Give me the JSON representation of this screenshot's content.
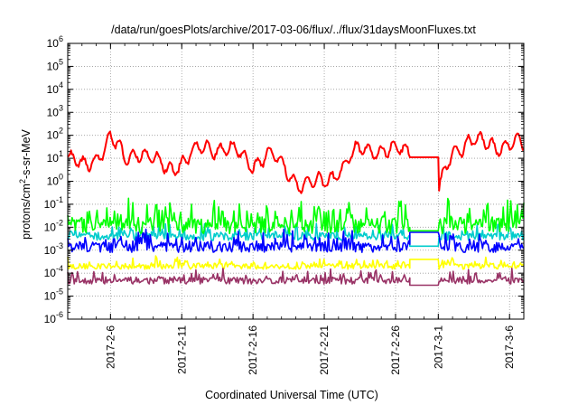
{
  "chart_data": {
    "type": "line",
    "title": "/data/run/goesPlots/archive/2017-03-06/flux/../flux/31daysMoonFluxes.txt",
    "xlabel": "Coordinated Universal Time (UTC)",
    "ylabel_parts": [
      "protons/cm",
      "2",
      "-s-sr-MeV"
    ],
    "x_axis": {
      "type": "date",
      "range": [
        "2017-02-03",
        "2017-03-07"
      ],
      "major_ticks": [
        {
          "date": "2017-02-06",
          "label": "2017-2-6"
        },
        {
          "date": "2017-02-11",
          "label": "2017-2-11"
        },
        {
          "date": "2017-02-16",
          "label": "2017-2-16"
        },
        {
          "date": "2017-02-21",
          "label": "2017-2-21"
        },
        {
          "date": "2017-02-26",
          "label": "2017-2-26"
        },
        {
          "date": "2017-03-01",
          "label": "2017-3-1"
        },
        {
          "date": "2017-03-06",
          "label": "2017-3-6"
        }
      ]
    },
    "y_axis": {
      "scale": "log",
      "range": [
        1e-06,
        1000000.0
      ],
      "ticks": [
        {
          "value": 1e-06,
          "base": "10",
          "exp": "-6"
        },
        {
          "value": 1e-05,
          "base": "10",
          "exp": "-5"
        },
        {
          "value": 0.0001,
          "base": "10",
          "exp": "-4"
        },
        {
          "value": 0.001,
          "base": "10",
          "exp": "-3"
        },
        {
          "value": 0.01,
          "base": "10",
          "exp": "-2"
        },
        {
          "value": 0.1,
          "base": "10",
          "exp": "-1"
        },
        {
          "value": 1,
          "base": "10",
          "exp": "0"
        },
        {
          "value": 10,
          "base": "10",
          "exp": "1"
        },
        {
          "value": 100,
          "base": "10",
          "exp": "2"
        },
        {
          "value": 1000,
          "base": "10",
          "exp": "3"
        },
        {
          "value": 10000,
          "base": "10",
          "exp": "4"
        },
        {
          "value": 100000,
          "base": "10",
          "exp": "5"
        },
        {
          "value": 1000000,
          "base": "10",
          "exp": "6"
        }
      ]
    },
    "grid": true,
    "legend": "none",
    "series": [
      {
        "color": "#ff0000",
        "typical": 7,
        "spread_decades": 0.55,
        "gap_value": 11,
        "points": [
          {
            "x": "2017-02-03",
            "y": 10
          },
          {
            "x": "2017-02-04",
            "y": 4
          },
          {
            "x": "2017-02-05",
            "y": 12
          },
          {
            "x": "2017-02-06",
            "y": 80
          },
          {
            "x": "2017-02-07",
            "y": 8
          },
          {
            "x": "2017-02-08",
            "y": 25
          },
          {
            "x": "2017-02-10",
            "y": 3
          },
          {
            "x": "2017-02-12",
            "y": 20
          },
          {
            "x": "2017-02-14",
            "y": 35
          },
          {
            "x": "2017-02-16",
            "y": 5
          },
          {
            "x": "2017-02-17",
            "y": 20
          },
          {
            "x": "2017-02-19",
            "y": 1
          },
          {
            "x": "2017-02-21",
            "y": 0.7
          },
          {
            "x": "2017-02-23",
            "y": 15
          },
          {
            "x": "2017-02-25",
            "y": 30
          },
          {
            "x": "2017-02-27",
            "y": 15
          },
          {
            "x": "2017-02-28",
            "y": 12
          },
          {
            "x": "2017-03-01",
            "y": 0.3
          },
          {
            "x": "2017-03-02",
            "y": 25
          },
          {
            "x": "2017-03-03",
            "y": 50
          },
          {
            "x": "2017-03-05",
            "y": 40
          },
          {
            "x": "2017-03-07",
            "y": 35
          }
        ]
      },
      {
        "color": "#00ff00",
        "typical": 0.015,
        "spread_decades": 0.7,
        "gap_value": 0.007
      },
      {
        "color": "#00cccc",
        "typical": 0.005,
        "spread_decades": 0.35,
        "gap_value": 0.0015
      },
      {
        "color": "#0000ff",
        "typical": 0.0017,
        "spread_decades": 0.45,
        "gap_value": 0.006
      },
      {
        "color": "#ffff00",
        "typical": 0.00025,
        "spread_decades": 0.25,
        "gap_value": 0.0004
      },
      {
        "color": "#993366",
        "typical": 6e-05,
        "spread_decades": 0.3,
        "gap_value": 3e-05
      }
    ],
    "data_gap": {
      "start": "2017-02-27",
      "end": "2017-03-01"
    }
  }
}
